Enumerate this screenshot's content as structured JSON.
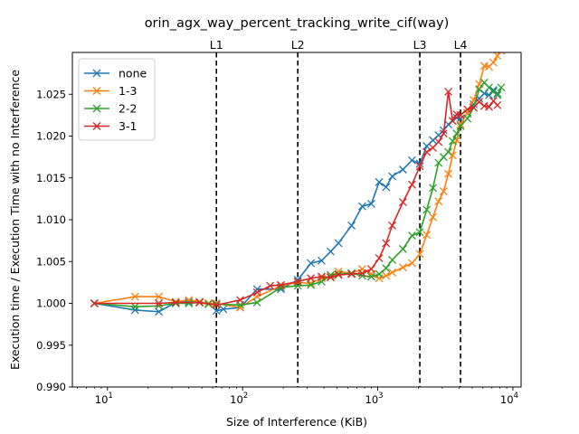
{
  "chart_data": {
    "type": "line",
    "title": "orin_agx_way_percent_tracking_write_cif(way)",
    "xlabel": "Size of Interference (KiB)",
    "ylabel": "Execution time / Execution Time with no Interference",
    "xscale": "log",
    "xlim": [
      5.5,
      11500
    ],
    "ylim": [
      0.99,
      1.03
    ],
    "x_ticks": [
      {
        "value": 10,
        "base": "10",
        "exp": "1"
      },
      {
        "value": 100,
        "base": "10",
        "exp": "2"
      },
      {
        "value": 1000,
        "base": "10",
        "exp": "3"
      },
      {
        "value": 10000,
        "base": "10",
        "exp": "4"
      }
    ],
    "y_ticks": [
      "0.990",
      "0.995",
      "1.000",
      "1.005",
      "1.010",
      "1.015",
      "1.020",
      "1.025"
    ],
    "vlines": [
      {
        "label": "L1",
        "x": 64
      },
      {
        "label": "L2",
        "x": 256
      },
      {
        "label": "L3",
        "x": 2048
      },
      {
        "label": "L4",
        "x": 4096
      }
    ],
    "legend_position": "top-left",
    "grid": false,
    "series": [
      {
        "name": "none",
        "color": "#1f77b4",
        "x": [
          8,
          16,
          24,
          32,
          40,
          48,
          56,
          64,
          72,
          96,
          128,
          192,
          256,
          320,
          384,
          448,
          512,
          640,
          768,
          896,
          1024,
          1152,
          1280,
          1536,
          1792,
          2048,
          2304,
          2560,
          2816,
          3072,
          3328,
          3584,
          3840,
          4096,
          4608,
          5120,
          5632,
          6144,
          6656,
          7168,
          7680
        ],
        "y": [
          1.0,
          0.9992,
          0.999,
          1.0001,
          1.0002,
          1.0001,
          1.0,
          0.9991,
          0.9993,
          0.9995,
          1.0017,
          1.0017,
          1.0028,
          1.0048,
          1.0051,
          1.0062,
          1.0072,
          1.0093,
          1.0116,
          1.0119,
          1.0145,
          1.0139,
          1.0152,
          1.016,
          1.0171,
          1.0167,
          1.0188,
          1.0195,
          1.0201,
          1.0207,
          1.0214,
          1.0218,
          1.0222,
          1.0221,
          1.0227,
          1.0238,
          1.0245,
          1.0251,
          1.0249,
          1.0255,
          1.0251
        ]
      },
      {
        "name": "1-3",
        "color": "#ff7f0e",
        "x": [
          8,
          16,
          24,
          32,
          40,
          48,
          56,
          64,
          96,
          128,
          192,
          256,
          320,
          384,
          448,
          512,
          640,
          768,
          896,
          1024,
          1152,
          1280,
          1536,
          1792,
          2048,
          2304,
          2560,
          2816,
          3072,
          3328,
          3584,
          3840,
          4096,
          4608,
          5120,
          5632,
          6144,
          6656,
          7168,
          7680,
          8192
        ],
        "y": [
          1.0,
          1.0008,
          1.0008,
          1.0002,
          1.0004,
          1.0002,
          1.0,
          1.0,
          0.9995,
          1.0008,
          1.0021,
          1.0025,
          1.0024,
          1.003,
          1.0032,
          1.0038,
          1.0036,
          1.0041,
          1.0035,
          1.003,
          1.0033,
          1.0037,
          1.0043,
          1.0048,
          1.0059,
          1.0082,
          1.0103,
          1.0122,
          1.0134,
          1.0155,
          1.0177,
          1.0195,
          1.0214,
          1.0228,
          1.0243,
          1.0262,
          1.0284,
          1.0283,
          1.0288,
          1.0296,
          1.0302
        ]
      },
      {
        "name": "2-2",
        "color": "#2ca02c",
        "x": [
          8,
          16,
          24,
          32,
          40,
          48,
          56,
          64,
          96,
          128,
          192,
          256,
          320,
          384,
          448,
          512,
          640,
          768,
          896,
          1024,
          1152,
          1280,
          1536,
          1792,
          2048,
          2304,
          2560,
          2816,
          3072,
          3328,
          3584,
          3840,
          4096,
          4608,
          5120,
          5632,
          6144,
          6656,
          7168,
          7680,
          8192
        ],
        "y": [
          1.0,
          0.9996,
          0.9997,
          1.0,
          1.0,
          1.0001,
          0.9999,
          0.9999,
          0.9998,
          1.0001,
          1.0019,
          1.0021,
          1.0022,
          1.0026,
          1.0034,
          1.0035,
          1.0036,
          1.0033,
          1.0032,
          1.0035,
          1.0042,
          1.0052,
          1.0065,
          1.0081,
          1.0085,
          1.0112,
          1.0138,
          1.0168,
          1.0175,
          1.0181,
          1.0194,
          1.0203,
          1.0212,
          1.0221,
          1.0234,
          1.0256,
          1.0264,
          1.0258,
          1.0253,
          1.0249,
          1.0258
        ]
      },
      {
        "name": "3-1",
        "color": "#d62728",
        "x": [
          8,
          24,
          32,
          48,
          64,
          96,
          128,
          160,
          192,
          256,
          320,
          384,
          448,
          512,
          640,
          768,
          896,
          1024,
          1152,
          1280,
          1536,
          1792,
          2048,
          2304,
          2560,
          2816,
          3072,
          3328,
          3584,
          3840,
          4096,
          4608,
          5120,
          5632,
          6144,
          6656,
          7168,
          7680
        ],
        "y": [
          1.0,
          1.0,
          1.0001,
          1.0001,
          0.9998,
          1.0004,
          1.0013,
          1.0021,
          1.0022,
          1.0026,
          1.003,
          1.0032,
          1.0031,
          1.0034,
          1.0035,
          1.0036,
          1.0041,
          1.0054,
          1.0072,
          1.0093,
          1.0121,
          1.0142,
          1.0164,
          1.0181,
          1.0186,
          1.0193,
          1.0203,
          1.0253,
          1.0218,
          1.0226,
          1.0225,
          1.0232,
          1.0234,
          1.0241,
          1.0236,
          1.0235,
          1.0242,
          1.0237
        ]
      }
    ]
  }
}
